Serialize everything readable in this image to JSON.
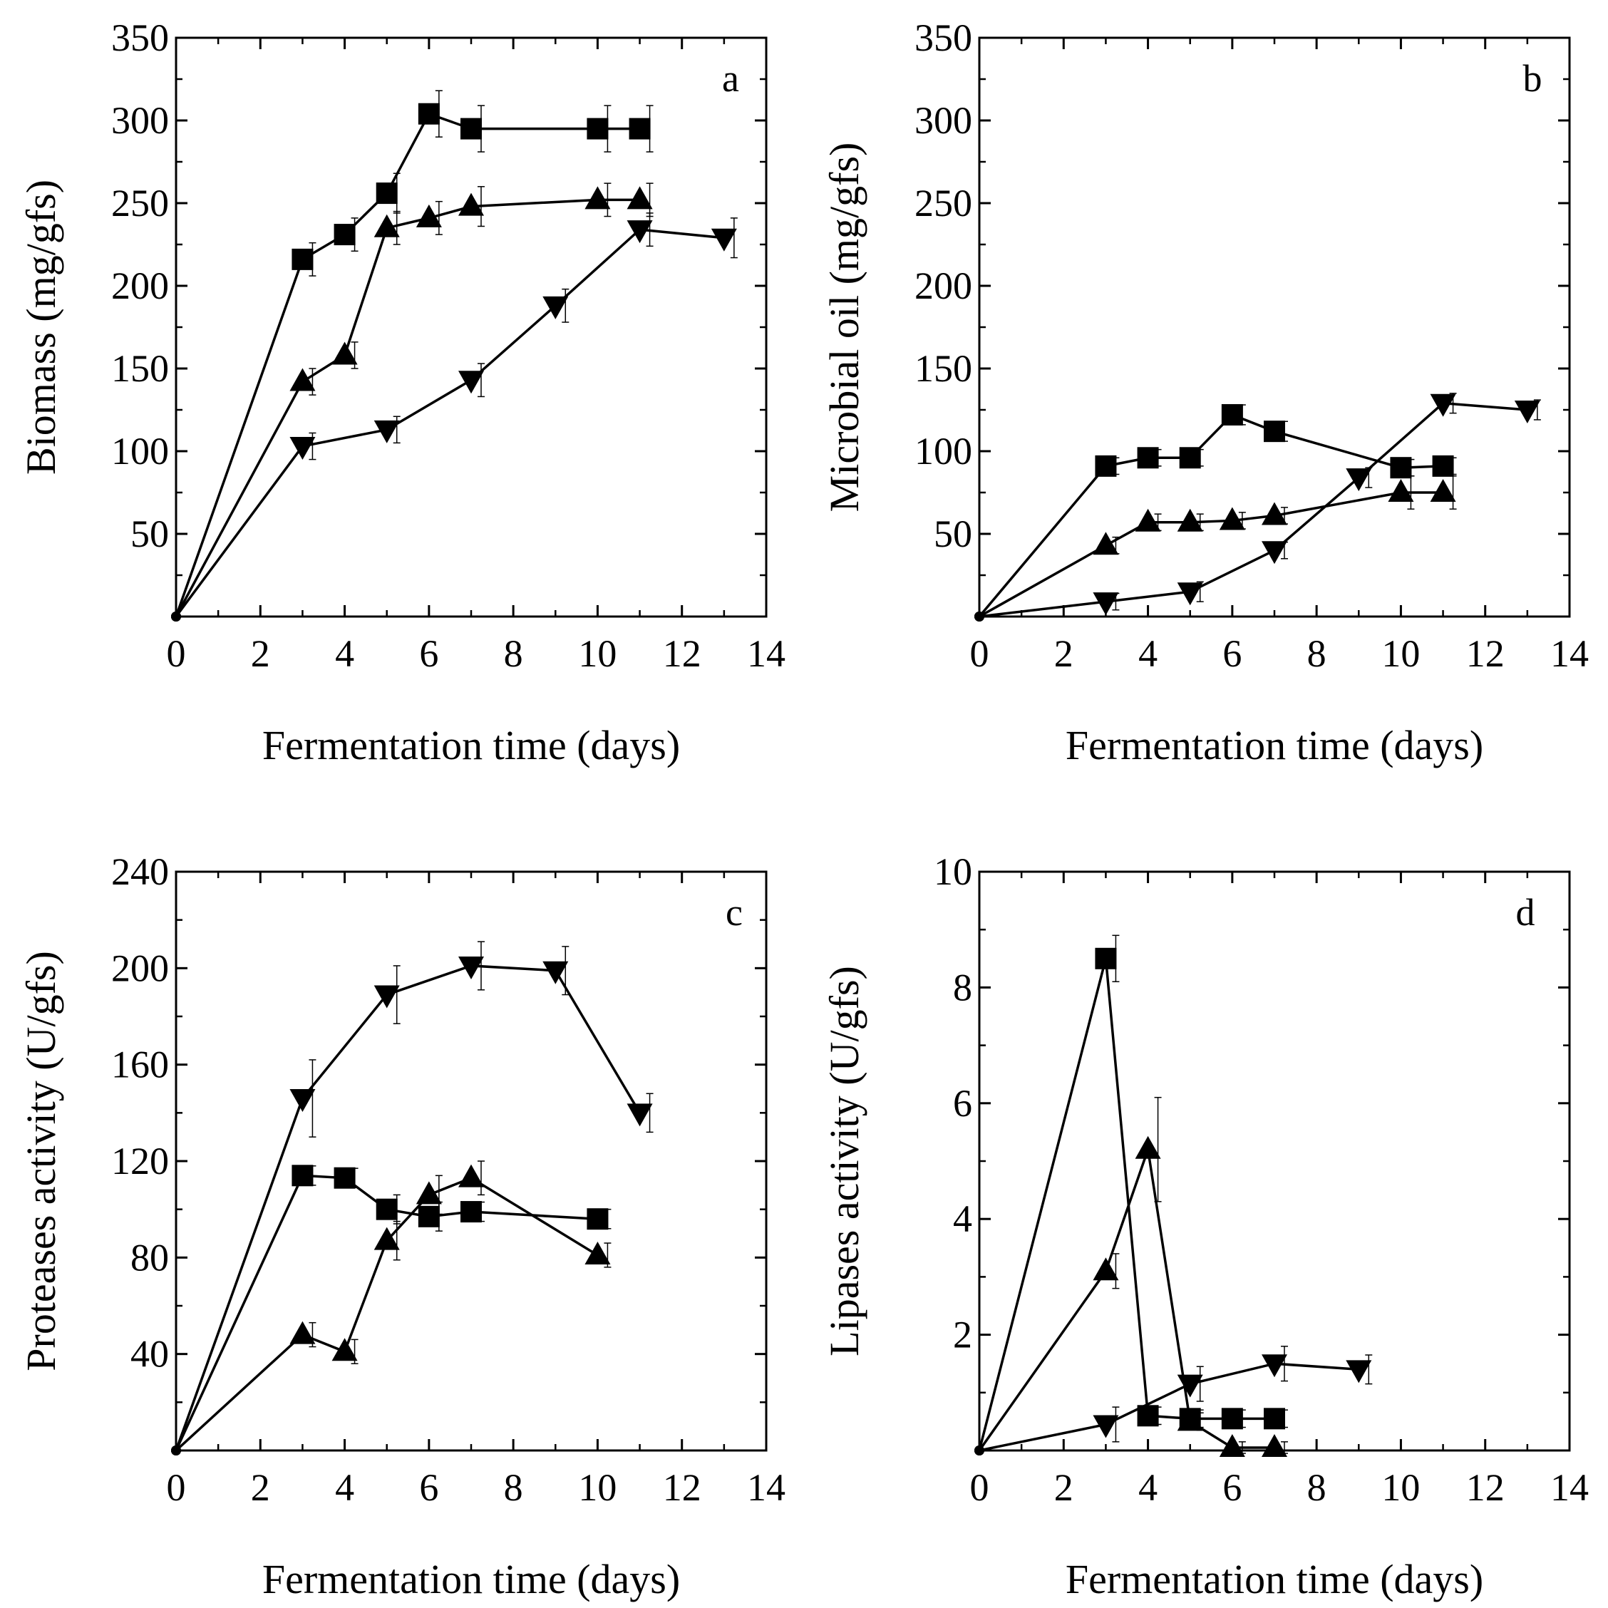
{
  "chart_data": [
    {
      "type": "line",
      "panel": "a",
      "xlabel": "Fermentation time (days)",
      "ylabel": "Biomass (mg/gfs)",
      "xlim": [
        0,
        14
      ],
      "ylim": [
        0,
        350
      ],
      "xticks": [
        "0",
        "2",
        "4",
        "6",
        "8",
        "10",
        "12",
        "14"
      ],
      "yticks": [
        "50",
        "100",
        "150",
        "200",
        "250",
        "300",
        "350"
      ],
      "grid": false,
      "series": [
        {
          "marker": "square",
          "x": [
            0,
            3,
            4,
            5,
            6,
            7,
            10,
            11
          ],
          "y": [
            0,
            216,
            231,
            256,
            304,
            295,
            295,
            295
          ],
          "err": [
            0,
            10,
            10,
            12,
            14,
            14,
            14,
            14
          ]
        },
        {
          "marker": "triangle-up",
          "x": [
            0,
            3,
            4,
            5,
            6,
            7,
            10,
            11
          ],
          "y": [
            0,
            142,
            158,
            235,
            241,
            248,
            252,
            252
          ],
          "err": [
            0,
            8,
            8,
            10,
            10,
            12,
            10,
            10
          ]
        },
        {
          "marker": "triangle-down",
          "x": [
            0,
            3,
            5,
            7,
            9,
            11,
            13
          ],
          "y": [
            0,
            103,
            113,
            143,
            188,
            234,
            229
          ],
          "err": [
            0,
            8,
            8,
            10,
            10,
            10,
            12
          ]
        }
      ]
    },
    {
      "type": "line",
      "panel": "b",
      "xlabel": "Fermentation time (days)",
      "ylabel": "Microbial oil (mg/gfs)",
      "xlim": [
        0,
        14
      ],
      "ylim": [
        0,
        350
      ],
      "xticks": [
        "0",
        "2",
        "4",
        "6",
        "8",
        "10",
        "12",
        "14"
      ],
      "yticks": [
        "50",
        "100",
        "150",
        "200",
        "250",
        "300",
        "350"
      ],
      "grid": false,
      "series": [
        {
          "marker": "square",
          "x": [
            0,
            3,
            4,
            5,
            6,
            7,
            10,
            11
          ],
          "y": [
            0,
            91,
            96,
            96,
            122,
            112,
            90,
            91
          ],
          "err": [
            0,
            5,
            5,
            5,
            6,
            6,
            5,
            5
          ]
        },
        {
          "marker": "triangle-up",
          "x": [
            0,
            3,
            4,
            5,
            6,
            7,
            10,
            11
          ],
          "y": [
            0,
            43,
            57,
            57,
            58,
            61,
            75,
            75
          ],
          "err": [
            0,
            5,
            5,
            5,
            5,
            5,
            10,
            10
          ]
        },
        {
          "marker": "triangle-down",
          "x": [
            0,
            3,
            5,
            7,
            9,
            11,
            13
          ],
          "y": [
            0,
            9,
            15,
            40,
            84,
            129,
            125
          ],
          "err": [
            0,
            5,
            6,
            5,
            6,
            6,
            6
          ]
        }
      ]
    },
    {
      "type": "line",
      "panel": "c",
      "xlabel": "Fermentation time (days)",
      "ylabel": "Proteases activity (U/gfs)",
      "xlim": [
        0,
        14
      ],
      "ylim": [
        0,
        240
      ],
      "xticks": [
        "0",
        "2",
        "4",
        "6",
        "8",
        "10",
        "12",
        "14"
      ],
      "yticks": [
        "40",
        "80",
        "120",
        "160",
        "200",
        "240"
      ],
      "grid": false,
      "series": [
        {
          "marker": "square",
          "x": [
            0,
            3,
            4,
            5,
            6,
            7,
            10
          ],
          "y": [
            0,
            114,
            113,
            100,
            97,
            99,
            96
          ],
          "err": [
            0,
            4,
            4,
            6,
            6,
            4,
            4
          ]
        },
        {
          "marker": "triangle-up",
          "x": [
            0,
            3,
            4,
            5,
            6,
            7,
            10
          ],
          "y": [
            0,
            48,
            41,
            87,
            106,
            113,
            81
          ],
          "err": [
            0,
            5,
            5,
            8,
            8,
            7,
            5
          ]
        },
        {
          "marker": "triangle-down",
          "x": [
            0,
            3,
            5,
            7,
            9,
            11
          ],
          "y": [
            0,
            146,
            189,
            201,
            199,
            140
          ],
          "err": [
            0,
            16,
            12,
            10,
            10,
            8
          ]
        }
      ]
    },
    {
      "type": "line",
      "panel": "d",
      "xlabel": "Fermentation time (days)",
      "ylabel": "Lipases activity (U/gfs)",
      "xlim": [
        0,
        14
      ],
      "ylim": [
        0,
        10
      ],
      "xticks": [
        "0",
        "2",
        "4",
        "6",
        "8",
        "10",
        "12",
        "14"
      ],
      "yticks": [
        "2",
        "4",
        "6",
        "8",
        "10"
      ],
      "grid": false,
      "series": [
        {
          "marker": "square",
          "x": [
            0,
            3,
            4,
            5,
            6,
            7
          ],
          "y": [
            0,
            8.5,
            0.6,
            0.55,
            0.55,
            0.55
          ],
          "err": [
            0,
            0.4,
            0.15,
            0.15,
            0.15,
            0.15
          ]
        },
        {
          "marker": "triangle-up",
          "x": [
            0,
            3,
            4,
            5,
            6,
            7
          ],
          "y": [
            0,
            3.1,
            5.2,
            0.5,
            0.05,
            0.05
          ],
          "err": [
            0,
            0.3,
            0.9,
            0.15,
            0.1,
            0.1
          ]
        },
        {
          "marker": "triangle-down",
          "x": [
            0,
            3,
            5,
            7,
            9
          ],
          "y": [
            0,
            0.45,
            1.15,
            1.5,
            1.4
          ],
          "err": [
            0,
            0.3,
            0.3,
            0.3,
            0.25
          ]
        }
      ]
    }
  ]
}
